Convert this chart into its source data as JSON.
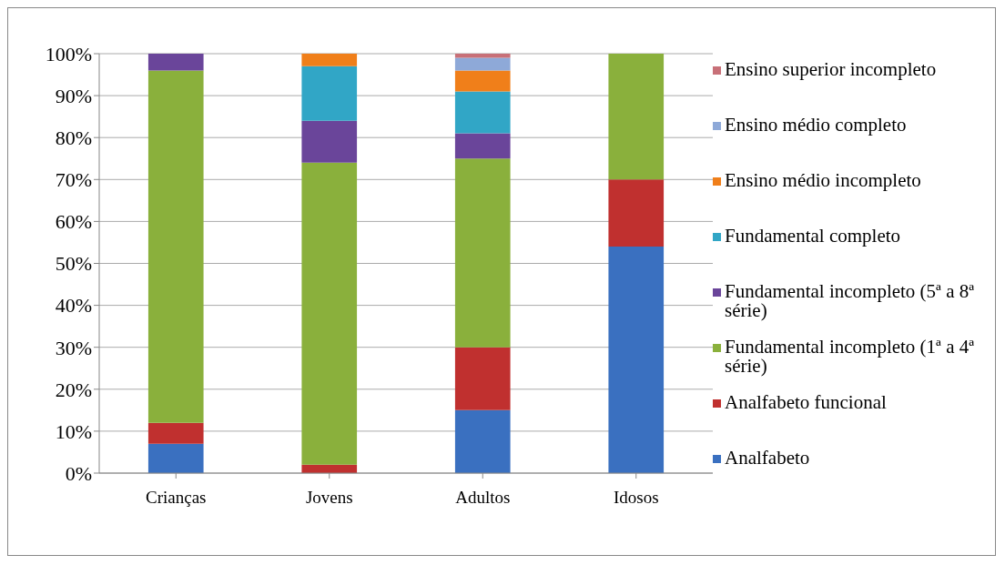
{
  "chart_data": {
    "type": "bar",
    "stacked": true,
    "categories": [
      "Crianças",
      "Jovens",
      "Adultos",
      "Idosos"
    ],
    "series": [
      {
        "name": "Analfabeto",
        "color": "#3a70c0",
        "values": [
          7,
          0,
          15,
          54
        ]
      },
      {
        "name": "Analfabeto funcional",
        "color": "#c0302f",
        "values": [
          5,
          2,
          15,
          16
        ]
      },
      {
        "name": "Fundamental incompleto (1ª a 4ª série)",
        "color": "#8ab03c",
        "values": [
          84,
          72,
          45,
          30
        ]
      },
      {
        "name": "Fundamental incompleto (5ª a 8ª série)",
        "color": "#6a459a",
        "values": [
          4,
          10,
          6,
          0
        ]
      },
      {
        "name": "Fundamental completo",
        "color": "#31a6c6",
        "values": [
          0,
          13,
          10,
          0
        ]
      },
      {
        "name": "Ensino médio incompleto",
        "color": "#f07f1a",
        "values": [
          0,
          3,
          5,
          0
        ]
      },
      {
        "name": "Ensino médio completo",
        "color": "#8ea9d8",
        "values": [
          0,
          0,
          3,
          0
        ]
      },
      {
        "name": "Ensino superior incompleto",
        "color": "#c87078",
        "values": [
          0,
          0,
          1,
          0
        ]
      }
    ],
    "ylim": [
      0,
      100
    ],
    "yticks": [
      {
        "value": 0,
        "label": "0%"
      },
      {
        "value": 10,
        "label": "10%"
      },
      {
        "value": 20,
        "label": "20%"
      },
      {
        "value": 30,
        "label": "30%"
      },
      {
        "value": 40,
        "label": "40%"
      },
      {
        "value": 50,
        "label": "50%"
      },
      {
        "value": 60,
        "label": "60%"
      },
      {
        "value": 70,
        "label": "70%"
      },
      {
        "value": 80,
        "label": "80%"
      },
      {
        "value": 90,
        "label": "90%"
      },
      {
        "value": 100,
        "label": "100%"
      }
    ],
    "grid": "y",
    "legend": "right"
  }
}
